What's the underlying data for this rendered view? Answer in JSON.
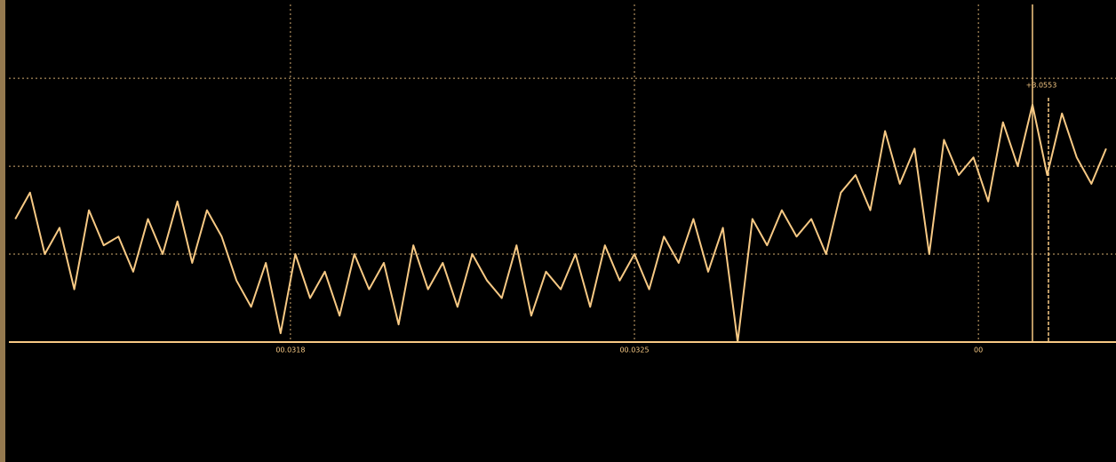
{
  "chart_data": {
    "type": "line",
    "x": [
      0.03124,
      0.03127,
      0.0313,
      0.03133,
      0.03136,
      0.03139,
      0.03142,
      0.03145,
      0.03148,
      0.03151,
      0.03154,
      0.03157,
      0.0316,
      0.03163,
      0.03166,
      0.03169,
      0.03172,
      0.03175,
      0.03178,
      0.03181,
      0.03184,
      0.03187,
      0.0319,
      0.03193,
      0.03196,
      0.03199,
      0.03202,
      0.03205,
      0.03208,
      0.03211,
      0.03214,
      0.03217,
      0.0322,
      0.03223,
      0.03226,
      0.03229,
      0.03232,
      0.03235,
      0.03238,
      0.03241,
      0.03244,
      0.03247,
      0.0325,
      0.03253,
      0.03256,
      0.03259,
      0.03262,
      0.03265,
      0.03268,
      0.03271,
      0.03274,
      0.03277,
      0.0328,
      0.03283,
      0.03286,
      0.03289,
      0.03292,
      0.03295,
      0.03298,
      0.03301,
      0.03304,
      0.03307,
      0.0331,
      0.03313,
      0.03316,
      0.03319,
      0.03322,
      0.03325,
      0.03328,
      0.03331,
      0.03334,
      0.03337,
      0.0334,
      0.03343,
      0.03346
    ],
    "series": [
      {
        "color": "#f7c984",
        "values": [
          1.4,
          1.7,
          1.0,
          1.3,
          0.6,
          1.5,
          1.1,
          1.2,
          0.8,
          1.4,
          1.0,
          1.6,
          0.9,
          1.5,
          1.2,
          0.7,
          0.4,
          0.9,
          0.1,
          1.0,
          0.5,
          0.8,
          0.3,
          1.0,
          0.6,
          0.9,
          0.2,
          1.1,
          0.6,
          0.9,
          0.4,
          1.0,
          0.7,
          0.5,
          1.1,
          0.3,
          0.8,
          0.6,
          1.0,
          0.4,
          1.1,
          0.7,
          1.0,
          0.6,
          1.2,
          0.9,
          1.4,
          0.8,
          1.3,
          0.0,
          1.4,
          1.1,
          1.5,
          1.2,
          1.4,
          1.0,
          1.7,
          1.9,
          1.5,
          2.4,
          1.8,
          2.2,
          1.0,
          2.3,
          1.9,
          2.1,
          1.6,
          2.5,
          2.0,
          2.7,
          1.9,
          2.6,
          2.1,
          1.8,
          2.2
        ]
      }
    ],
    "xlim": [
      0.031227,
      0.03348
    ],
    "xticks": [
      {
        "value": 0.0318,
        "label": "00.0318"
      },
      {
        "value": 0.0325,
        "label": "00.0325"
      },
      {
        "value": 0.0332,
        "label": "00"
      }
    ],
    "ylim": [
      0,
      3.84
    ],
    "ygrid": [
      1,
      2,
      3
    ],
    "grid": true,
    "annotations": [
      {
        "text": "+3.0553",
        "x": 0.03331
      }
    ]
  }
}
